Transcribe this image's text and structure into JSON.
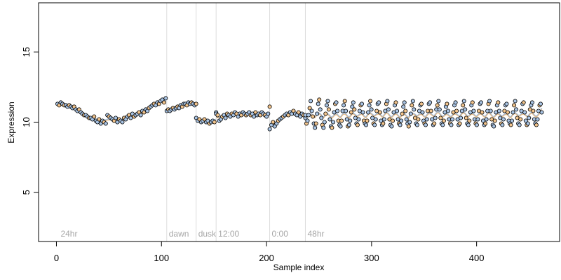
{
  "chart_data": {
    "type": "scatter",
    "title": "",
    "xlabel": "Sample index",
    "ylabel": "Expression",
    "xlim": [
      -17,
      479
    ],
    "ylim": [
      1.5,
      18.5
    ],
    "xticks": [
      0,
      100,
      200,
      300,
      400
    ],
    "yticks": [
      5,
      10,
      15
    ],
    "grid": false,
    "legend": "none",
    "colors": {
      "point_stroke": "#000000",
      "point_fill_a": "#a9c4e4",
      "point_fill_b": "#f2c48c",
      "trend_a": "#9ab9e0",
      "trend_b": "#f0b36a",
      "annotation_line": "#dddddd",
      "annotation_text": "#a6a6a6"
    },
    "annotations": [
      {
        "x": 2,
        "label": "24hr",
        "line": false
      },
      {
        "x": 105,
        "label": "dawn",
        "line": true
      },
      {
        "x": 133,
        "label": "dusk",
        "line": true
      },
      {
        "x": 152,
        "label": "12:00",
        "line": true
      },
      {
        "x": 203,
        "label": "0:00",
        "line": true
      },
      {
        "x": 237,
        "label": "48hr",
        "line": true
      }
    ],
    "segments": [
      {
        "range": [
          1,
          104
        ],
        "values": [
          11.3,
          11.2,
          11.4,
          11.3,
          11.2,
          11.2,
          11.1,
          11.2,
          11.1,
          11.0,
          11.1,
          10.9,
          10.8,
          10.9,
          10.7,
          10.6,
          10.5,
          10.5,
          10.4,
          10.3,
          10.3,
          10.2,
          10.4,
          10.1,
          10.0,
          10.2,
          9.9,
          10.1,
          10.0,
          9.9,
          10.5,
          10.4,
          10.3,
          10.2,
          10.1,
          10.3,
          10.0,
          10.2,
          10.1,
          10.0,
          10.3,
          10.2,
          10.4,
          10.5,
          10.3,
          10.6,
          10.4,
          10.5,
          10.6,
          10.7,
          10.5,
          10.8,
          10.7,
          10.9,
          10.8,
          11.0,
          11.1,
          11.2,
          11.3,
          11.2,
          11.4,
          11.3,
          11.5,
          11.6,
          11.4,
          11.7
        ]
      },
      {
        "range": [
          105,
          133
        ],
        "values": [
          10.8,
          10.9,
          10.8,
          10.9,
          11.0,
          10.9,
          11.0,
          11.1,
          11.0,
          11.2,
          11.1,
          11.3,
          11.3,
          11.2,
          11.4,
          11.3,
          11.4,
          11.3,
          11.2,
          11.3
        ]
      },
      {
        "range": [
          133,
          152
        ],
        "values": [
          10.3,
          10.1,
          10.2,
          10.0,
          10.1,
          10.2,
          10.0,
          10.1,
          9.9,
          10.0,
          10.1,
          10.0,
          10.7
        ]
      },
      {
        "range": [
          152,
          203
        ],
        "values": [
          10.6,
          10.5,
          10.1,
          10.2,
          10.4,
          10.5,
          10.3,
          10.6,
          10.5,
          10.4,
          10.6,
          10.5,
          10.7,
          10.6,
          10.4,
          10.6,
          10.5,
          10.7,
          10.6,
          10.5,
          10.6,
          10.7,
          10.5,
          10.6,
          10.4,
          10.7,
          10.5,
          10.6,
          10.5,
          10.7,
          10.6,
          10.5,
          10.4,
          10.6,
          11.1
        ]
      },
      {
        "range": [
          203,
          237
        ],
        "values": [
          9.5,
          9.8,
          10.0,
          9.7,
          9.9,
          10.1,
          10.2,
          10.3,
          10.4,
          10.5,
          10.6,
          10.5,
          10.7,
          10.6,
          10.8,
          10.6,
          10.5,
          10.7,
          10.4,
          10.6,
          10.5,
          10.3
        ]
      },
      {
        "range": [
          237,
          462
        ],
        "values": [
          10.5,
          9.9,
          10.1,
          10.5,
          11.0,
          11.5,
          10.8,
          10.4,
          9.9,
          9.6,
          9.9,
          10.6,
          11.3,
          11.6,
          10.9,
          10.3,
          9.8,
          9.6,
          10.0,
          10.6,
          11.2,
          11.5,
          10.9,
          10.2,
          9.7,
          9.6,
          10.0,
          10.7,
          11.3,
          11.4,
          10.8,
          10.1,
          9.8,
          9.7,
          10.1,
          10.8,
          11.2,
          11.5,
          10.8,
          10.2,
          9.7,
          9.8,
          10.1,
          10.7,
          11.1,
          11.4,
          10.9,
          10.3,
          9.9,
          9.8,
          10.2,
          10.8,
          11.2,
          11.3,
          10.7,
          10.1,
          9.9,
          9.8,
          10.1,
          10.7,
          11.2,
          11.5,
          10.9,
          10.3,
          9.9,
          9.8,
          10.2,
          10.8,
          11.3,
          11.4,
          10.7,
          10.1,
          9.8,
          9.9,
          10.2,
          10.8,
          11.3,
          11.5,
          10.9,
          10.2,
          9.8,
          9.7,
          10.1,
          10.7,
          11.2,
          11.4,
          10.8,
          10.2,
          9.9,
          9.8,
          10.1,
          10.6,
          11.1,
          11.4,
          10.8,
          10.2,
          9.9,
          9.7,
          10.0,
          10.6,
          11.2,
          11.5,
          10.9,
          10.3,
          9.9,
          9.8,
          10.2,
          10.8,
          11.2,
          11.3,
          10.7,
          10.1,
          9.9,
          9.8,
          10.2,
          10.8,
          11.3,
          11.4,
          10.8,
          10.2,
          9.8,
          9.9,
          10.3,
          10.9,
          11.2,
          11.5,
          10.9,
          10.3,
          9.9,
          9.8,
          10.1,
          10.7,
          11.1,
          11.3,
          10.8,
          10.2,
          9.9,
          9.8,
          10.2,
          10.7,
          11.2,
          11.4,
          10.8,
          10.2,
          9.8,
          9.9,
          10.3,
          10.8,
          11.2,
          11.5,
          10.9,
          10.3,
          9.9,
          9.8,
          10.1,
          10.7,
          11.2,
          11.4,
          10.8,
          10.2,
          9.9,
          9.8,
          10.2,
          10.8,
          11.3,
          11.4,
          10.7,
          10.1,
          9.8,
          9.9,
          10.2,
          10.8,
          11.3,
          11.5,
          10.8,
          10.2,
          9.8,
          9.7,
          10.1,
          10.7,
          11.2,
          11.4,
          10.8,
          10.3,
          9.9,
          9.8,
          10.2,
          10.8,
          11.2,
          11.3,
          10.7,
          10.1,
          9.9,
          9.8,
          10.1,
          10.7,
          11.2,
          11.5,
          10.9,
          10.3,
          9.9,
          9.8,
          10.2,
          10.8,
          11.3,
          11.4,
          10.7,
          10.1,
          9.8,
          9.9,
          10.3,
          10.9,
          11.2,
          11.4,
          10.8,
          10.2,
          9.9,
          9.8,
          10.2,
          10.8,
          11.2,
          11.3,
          10.7
        ]
      }
    ]
  }
}
